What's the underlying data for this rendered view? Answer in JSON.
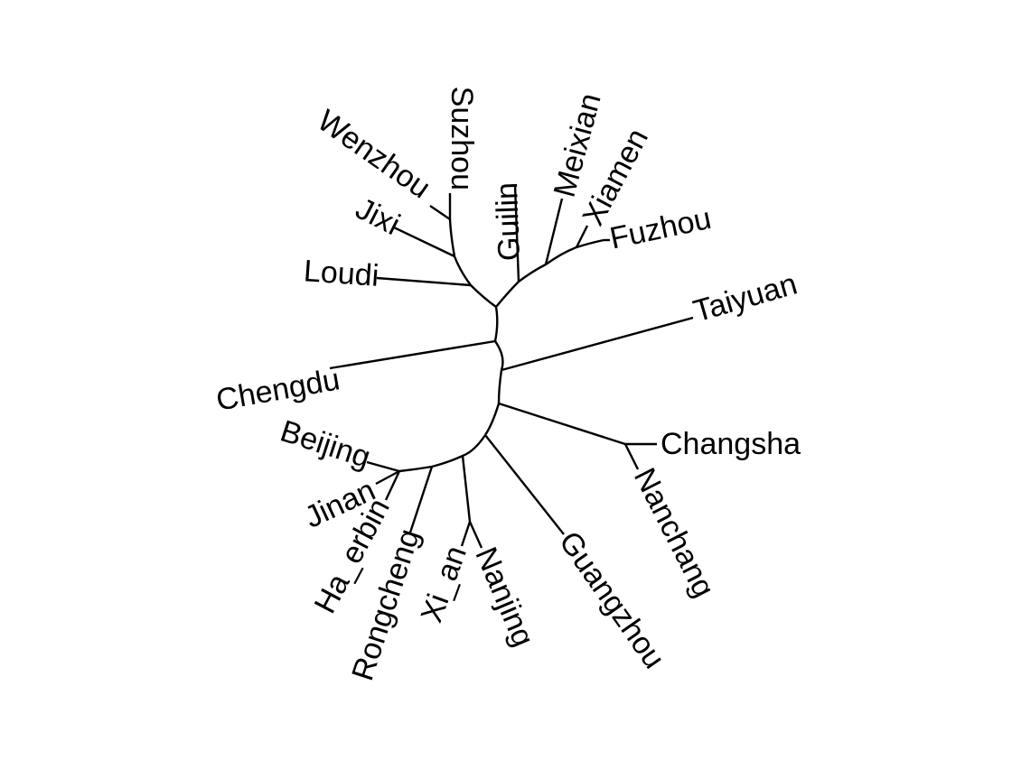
{
  "diagram": {
    "type": "circular phylogenetic tree",
    "line_color": "#000000",
    "background": "#ffffff",
    "tips": [
      {
        "id": "wenzhou",
        "label": "Wenzhou"
      },
      {
        "id": "suzhou",
        "label": "Suzhou"
      },
      {
        "id": "guilin",
        "label": "Guilin"
      },
      {
        "id": "meixian",
        "label": "Meixian"
      },
      {
        "id": "xiamen",
        "label": "Xiamen"
      },
      {
        "id": "fuzhou",
        "label": "Fuzhou"
      },
      {
        "id": "jixi",
        "label": "Jixi"
      },
      {
        "id": "loudi",
        "label": "Loudi"
      },
      {
        "id": "taiyuan",
        "label": "Taiyuan"
      },
      {
        "id": "chengdu",
        "label": "Chengdu"
      },
      {
        "id": "changsha",
        "label": "Changsha"
      },
      {
        "id": "nanchang",
        "label": "Nanchang"
      },
      {
        "id": "beijing",
        "label": "Beijing"
      },
      {
        "id": "jinan",
        "label": "Jinan"
      },
      {
        "id": "ha_erbin",
        "label": "Ha_erbin"
      },
      {
        "id": "rongcheng",
        "label": "Rongcheng"
      },
      {
        "id": "xi_an",
        "label": "Xi_an"
      },
      {
        "id": "nanjing",
        "label": "Nanjing"
      },
      {
        "id": "guangzhou",
        "label": "Guangzhou"
      }
    ]
  }
}
